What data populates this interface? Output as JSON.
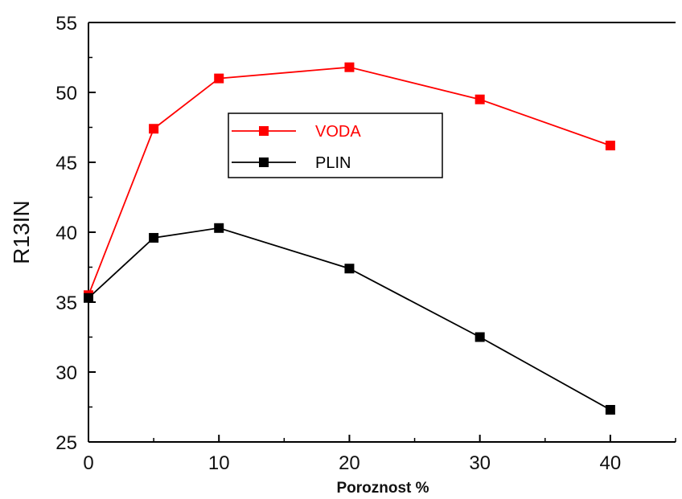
{
  "chart_data": {
    "type": "line",
    "xlabel": "Poroznost %",
    "ylabel": "R13IN",
    "xlim": [
      0,
      45
    ],
    "ylim": [
      25,
      55
    ],
    "x_ticks": [
      0,
      10,
      20,
      30,
      40
    ],
    "x_tick_labels": [
      "0",
      "10",
      "20",
      "30",
      "40"
    ],
    "y_ticks": [
      25,
      30,
      35,
      40,
      45,
      50,
      55
    ],
    "y_tick_labels": [
      "25",
      "30",
      "35",
      "40",
      "45",
      "50",
      "55"
    ],
    "x": [
      0,
      5,
      10,
      20,
      30,
      40
    ],
    "series": [
      {
        "name": "VODA",
        "color": "#ff0000",
        "values": [
          35.5,
          47.4,
          51.0,
          51.8,
          49.5,
          46.2
        ]
      },
      {
        "name": "PLIN",
        "color": "#000000",
        "values": [
          35.3,
          39.6,
          40.3,
          37.4,
          32.5,
          27.3
        ]
      }
    ],
    "legend_position": "top-center",
    "grid": false
  }
}
